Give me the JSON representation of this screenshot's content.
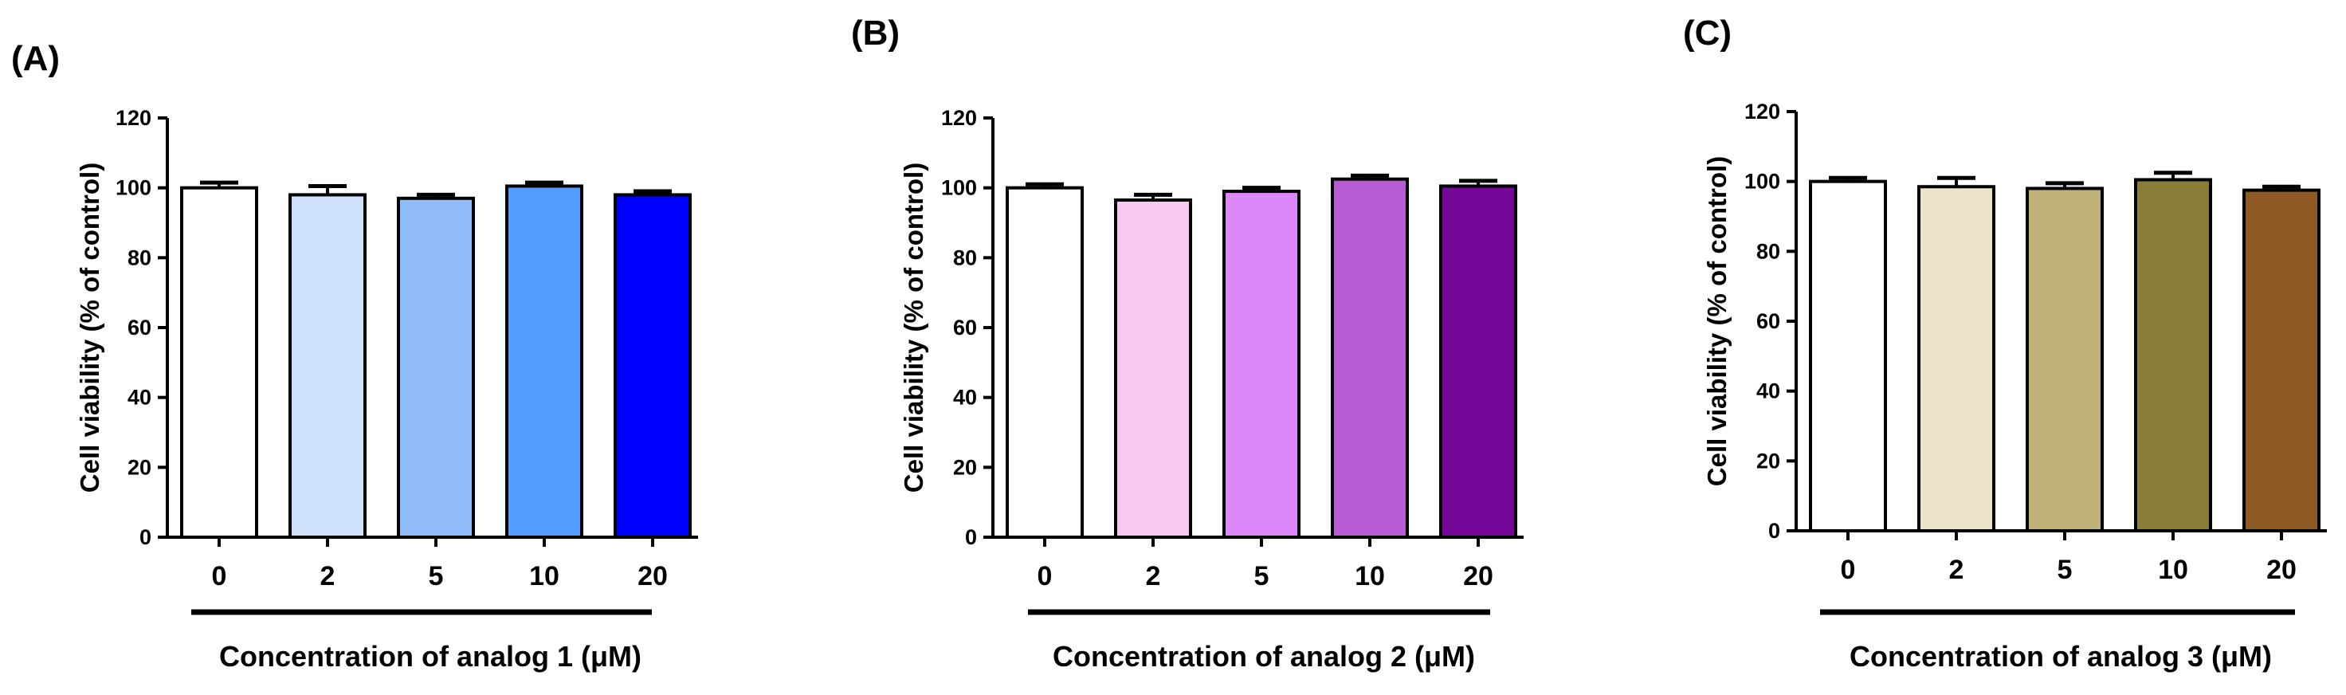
{
  "chart_data": [
    {
      "panel": "(A)",
      "type": "bar",
      "categories": [
        "0",
        "2",
        "5",
        "10",
        "20"
      ],
      "values": [
        100,
        98,
        97,
        100.5,
        98
      ],
      "errors": [
        1.5,
        2.5,
        1,
        1,
        1
      ],
      "colors": [
        "#ffffff",
        "#cfe1fa",
        "#8fbcf8",
        "#539bff",
        "#0000ff"
      ],
      "ylabel": "Cell viability (% of control)",
      "xlabel": "Concentration of analog 1 (μM)",
      "ylim": [
        0,
        120
      ],
      "yticks": [
        0,
        20,
        40,
        60,
        80,
        100,
        120
      ]
    },
    {
      "panel": "(B)",
      "type": "bar",
      "categories": [
        "0",
        "2",
        "5",
        "10",
        "20"
      ],
      "values": [
        100,
        96.5,
        99,
        102.5,
        100.5
      ],
      "errors": [
        1,
        1.5,
        1,
        1,
        1.5
      ],
      "colors": [
        "#ffffff",
        "#f8c8f0",
        "#dd88f8",
        "#b85cd6",
        "#740698"
      ],
      "ylabel": "Cell viability (% of control)",
      "xlabel": "Concentration of analog 2 (μM)",
      "ylim": [
        0,
        120
      ],
      "yticks": [
        0,
        20,
        40,
        60,
        80,
        100,
        120
      ]
    },
    {
      "panel": "(C)",
      "type": "bar",
      "categories": [
        "0",
        "2",
        "5",
        "10",
        "20"
      ],
      "values": [
        100,
        98.5,
        98,
        100.5,
        97.5
      ],
      "errors": [
        1,
        2.5,
        1.5,
        2,
        1
      ],
      "colors": [
        "#ffffff",
        "#ece4c8",
        "#c0b37a",
        "#8a7d3a",
        "#8c5a22"
      ],
      "ylabel": "Cell viability (% of control)",
      "xlabel": "Concentration of analog 3 (μM)",
      "ylim": [
        0,
        120
      ],
      "yticks": [
        0,
        20,
        40,
        60,
        80,
        100,
        120
      ]
    }
  ]
}
